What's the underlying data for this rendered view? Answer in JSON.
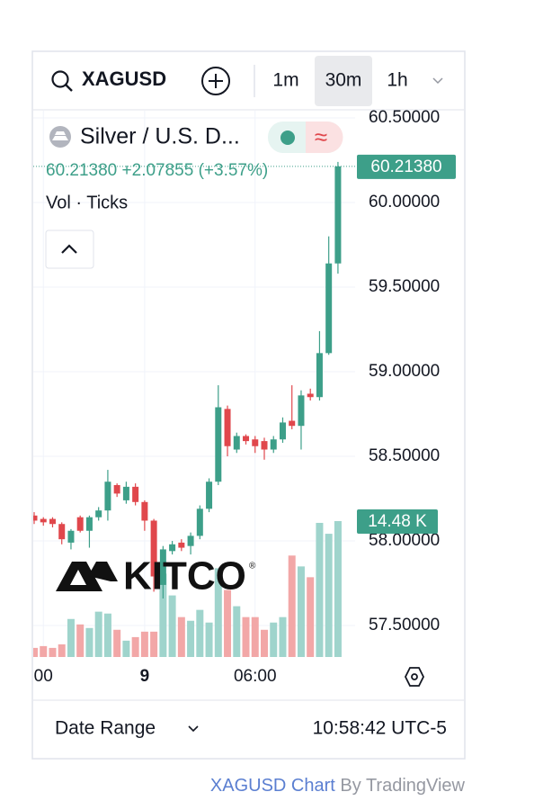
{
  "toolbar": {
    "symbol": "XAGUSD",
    "intervals": [
      "1m",
      "30m",
      "1h"
    ],
    "active_interval": "30m"
  },
  "chart_data": {
    "type": "candlestick",
    "title": "Silver / U.S. D...",
    "last_price_label": "60.21380",
    "change_label": "+2.07855 (+3.57%)",
    "indicator_label": "Vol · Ticks",
    "watermark": "KITCO",
    "categories": [
      null,
      "00",
      null,
      null,
      null,
      null,
      null,
      null,
      null,
      null,
      null,
      null,
      "9",
      null,
      null,
      null,
      null,
      null,
      null,
      null,
      null,
      null,
      null,
      null,
      "06:00",
      null,
      null,
      null,
      null,
      null,
      null,
      null,
      null,
      null
    ],
    "open": [
      58.15,
      58.13,
      58.13,
      58.1,
      57.99,
      58.14,
      58.06,
      58.14,
      58.18,
      58.33,
      58.24,
      58.32,
      58.23,
      58.12,
      57.74,
      57.94,
      57.99,
      57.97,
      58.03,
      58.19,
      58.35,
      58.78,
      58.54,
      58.62,
      58.6,
      58.59,
      58.54,
      58.6,
      58.71,
      58.68,
      58.87,
      58.85,
      59.11,
      59.64
    ],
    "high": [
      58.17,
      58.14,
      58.14,
      58.11,
      58.07,
      58.15,
      58.15,
      58.2,
      58.42,
      58.34,
      58.35,
      58.34,
      58.24,
      58.13,
      57.97,
      58.0,
      58.01,
      58.05,
      58.21,
      58.37,
      58.92,
      58.8,
      58.64,
      58.63,
      58.62,
      58.61,
      58.62,
      58.73,
      58.92,
      58.89,
      58.9,
      59.24,
      59.8,
      60.24
    ],
    "low": [
      58.1,
      58.09,
      58.08,
      57.98,
      57.95,
      58.05,
      57.96,
      58.12,
      58.12,
      58.26,
      58.22,
      58.21,
      58.06,
      57.7,
      57.66,
      57.92,
      57.94,
      57.92,
      58.01,
      58.17,
      58.33,
      58.5,
      58.52,
      58.57,
      58.52,
      58.48,
      58.52,
      58.58,
      58.66,
      58.54,
      58.83,
      58.83,
      59.1,
      59.58
    ],
    "close": [
      58.12,
      58.11,
      58.1,
      58.01,
      58.06,
      58.06,
      58.14,
      58.18,
      58.35,
      58.28,
      58.32,
      58.23,
      58.12,
      57.79,
      57.95,
      57.98,
      57.96,
      58.03,
      58.19,
      58.35,
      58.79,
      58.56,
      58.62,
      58.59,
      58.56,
      58.54,
      58.6,
      58.7,
      58.68,
      58.86,
      58.85,
      59.11,
      59.64,
      60.2138
    ],
    "volume": [
      0.97,
      1.16,
      0.97,
      1.35,
      4.05,
      3.47,
      3.09,
      4.83,
      4.63,
      2.9,
      1.74,
      2.12,
      2.7,
      2.7,
      8.88,
      6.56,
      4.25,
      3.86,
      5.02,
      3.67,
      9.46,
      7.14,
      5.41,
      4.25,
      4.25,
      2.9,
      3.67,
      4.25,
      10.81,
      9.65,
      8.5,
      14.29,
      13.13,
      14.48
    ],
    "volume_label": "14.48 K",
    "up_color": "#3d9f89",
    "down_color": "#e0474c",
    "up_volume_color": "#9fd4cc",
    "down_volume_color": "#f2a7a7",
    "ylim": [
      57.314,
      60.548
    ],
    "volume_ylim": [
      0,
      58.3
    ],
    "yticks": [
      {
        "value": 60.5,
        "label": "60.50000"
      },
      {
        "value": 60,
        "label": "60.00000"
      },
      {
        "value": 59.5,
        "label": "59.50000"
      },
      {
        "value": 59,
        "label": "59.00000"
      },
      {
        "value": 58.5,
        "label": "58.50000"
      },
      {
        "value": 58,
        "label": "58.00000"
      },
      {
        "value": 57.5,
        "label": "57.50000"
      }
    ],
    "grid": true
  },
  "footer": {
    "date_range": "Date Range",
    "clock": "10:58:42 UTC-5",
    "credit_link": "XAGUSD Chart",
    "credit": "By TradingView"
  }
}
